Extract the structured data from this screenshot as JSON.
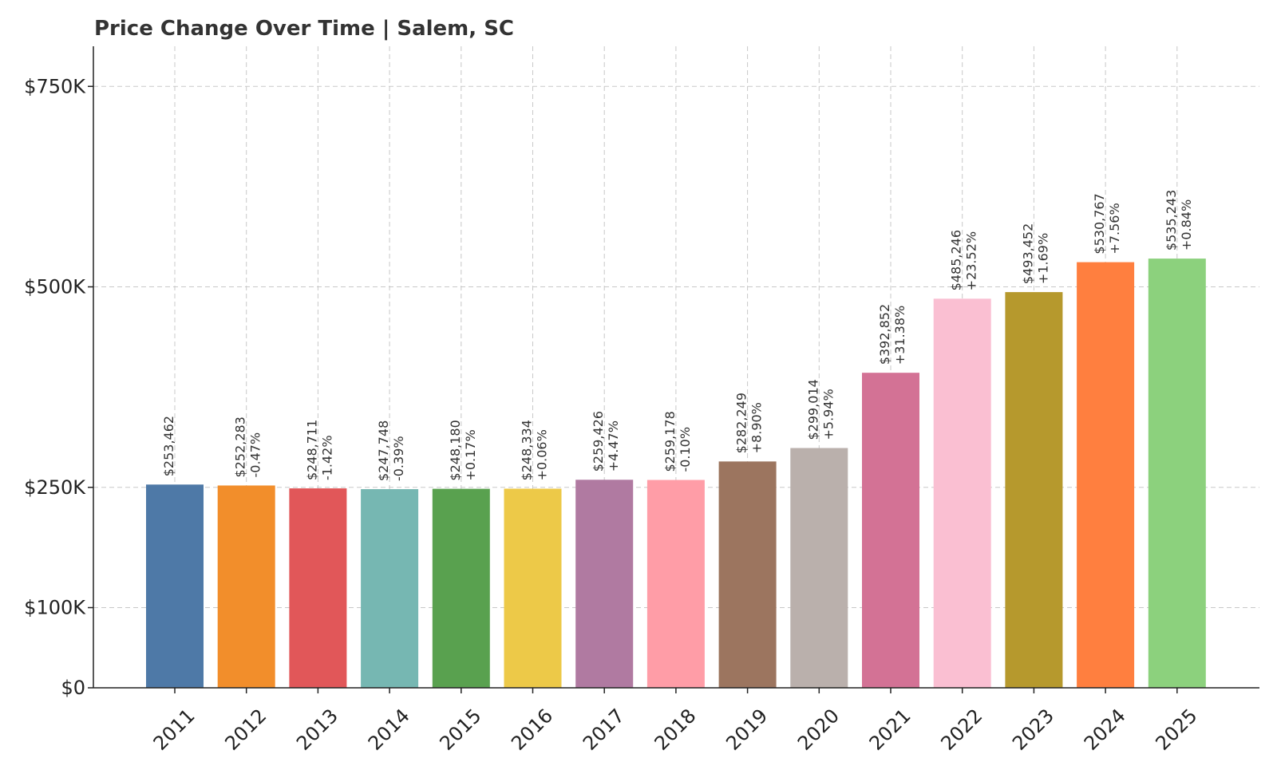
{
  "chart_data": {
    "type": "bar",
    "title": "Price Change Over Time | Salem, SC",
    "xlabel": "",
    "ylabel": "",
    "categories": [
      "2011",
      "2012",
      "2013",
      "2014",
      "2015",
      "2016",
      "2017",
      "2018",
      "2019",
      "2020",
      "2021",
      "2022",
      "2023",
      "2024",
      "2025"
    ],
    "values": [
      253462,
      252283,
      248711,
      247748,
      248180,
      248334,
      259426,
      259178,
      282249,
      299014,
      392852,
      485246,
      493452,
      530767,
      535243
    ],
    "value_labels": [
      "$253,462",
      "$252,283",
      "$248,711",
      "$247,748",
      "$248,180",
      "$248,334",
      "$259,426",
      "$259,178",
      "$282,249",
      "$299,014",
      "$392,852",
      "$485,246",
      "$493,452",
      "$530,767",
      "$535,243"
    ],
    "change_labels": [
      "",
      "-0.47%",
      "-1.42%",
      "-0.39%",
      "+0.17%",
      "+0.06%",
      "+4.47%",
      "-0.10%",
      "+8.90%",
      "+5.94%",
      "+31.38%",
      "+23.52%",
      "+1.69%",
      "+7.56%",
      "+0.84%"
    ],
    "colors": [
      "#4e79a7",
      "#f28e2b",
      "#e15759",
      "#76b7b2",
      "#59a14f",
      "#edc948",
      "#b07aa1",
      "#ff9da7",
      "#9c755f",
      "#bab0ac",
      "#d37295",
      "#fabfd2",
      "#b6992d",
      "#ff7f3f",
      "#8cd17d"
    ],
    "yticks": [
      0,
      100000,
      250000,
      500000,
      750000
    ],
    "ytick_labels": [
      "$0",
      "$100K",
      "$250K",
      "$500K",
      "$750K"
    ],
    "ylim": [
      0,
      800000
    ],
    "grid": true,
    "legend": "none"
  }
}
